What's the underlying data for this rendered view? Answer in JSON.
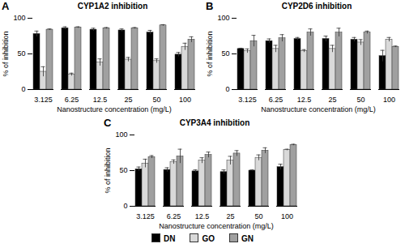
{
  "chart_data": [
    {
      "type": "bar",
      "annotation": "A",
      "title": "CYP1A2 inhibition",
      "x_label": "Nanostructure concentration (mg/L)",
      "y_label": "% of inhibition",
      "categories": [
        "3.125",
        "6.25",
        "12.5",
        "25",
        "50",
        "100"
      ],
      "series": [
        {
          "name": "DN",
          "color": "#000000",
          "values": [
            78,
            86,
            84,
            83,
            80,
            49
          ],
          "errors": [
            4,
            2,
            2,
            2,
            3,
            3
          ]
        },
        {
          "name": "GO",
          "color": "#d9d9d9",
          "values": [
            25,
            21,
            38,
            42,
            40,
            60
          ],
          "errors": [
            7,
            2,
            5,
            3,
            3,
            5
          ]
        },
        {
          "name": "GN",
          "color": "#a0a0a0",
          "values": [
            84,
            87,
            86,
            86,
            90,
            70
          ],
          "errors": [
            1,
            1,
            1,
            1,
            1,
            4
          ]
        }
      ],
      "ylim": [
        0,
        100
      ],
      "yticks": [
        0,
        50,
        100
      ]
    },
    {
      "type": "bar",
      "annotation": "B",
      "title": "CYP2D6 inhibition",
      "x_label": "Nanostructure concentration (mg/L)",
      "y_label": "% of inhibition",
      "categories": [
        "3.125",
        "6.25",
        "12.5",
        "25",
        "50",
        "100"
      ],
      "series": [
        {
          "name": "DN",
          "color": "#000000",
          "values": [
            57,
            68,
            71,
            71,
            70,
            47
          ],
          "errors": [
            1,
            3,
            2,
            4,
            3,
            8
          ]
        },
        {
          "name": "GO",
          "color": "#d9d9d9",
          "values": [
            54,
            57,
            54,
            57,
            66,
            70
          ],
          "errors": [
            3,
            5,
            2,
            5,
            4,
            3
          ]
        },
        {
          "name": "GN",
          "color": "#a0a0a0",
          "values": [
            68,
            72,
            80,
            80,
            80,
            60
          ],
          "errors": [
            8,
            5,
            5,
            6,
            2,
            1
          ]
        }
      ],
      "ylim": [
        0,
        100
      ],
      "yticks": [
        0,
        50,
        100
      ]
    },
    {
      "type": "bar",
      "annotation": "C",
      "title": "CYP3A4 inhibition",
      "x_label": "Nanostructure concentration (mg/L)",
      "y_label": "% of inhibition",
      "categories": [
        "3.125",
        "6.25",
        "12.5",
        "25",
        "50",
        "100"
      ],
      "series": [
        {
          "name": "DN",
          "color": "#000000",
          "values": [
            52,
            51,
            49,
            48,
            50,
            55
          ],
          "errors": [
            3,
            3,
            2,
            3,
            1,
            4
          ]
        },
        {
          "name": "GO",
          "color": "#d9d9d9",
          "values": [
            60,
            62,
            64,
            64,
            68,
            79
          ],
          "errors": [
            6,
            3,
            4,
            6,
            4,
            1
          ]
        },
        {
          "name": "GN",
          "color": "#a0a0a0",
          "values": [
            69,
            70,
            72,
            74,
            78,
            86
          ],
          "errors": [
            2,
            10,
            4,
            4,
            4,
            1
          ]
        }
      ],
      "ylim": [
        0,
        100
      ],
      "yticks": [
        0,
        50,
        100
      ],
      "legend": "bottom"
    }
  ]
}
